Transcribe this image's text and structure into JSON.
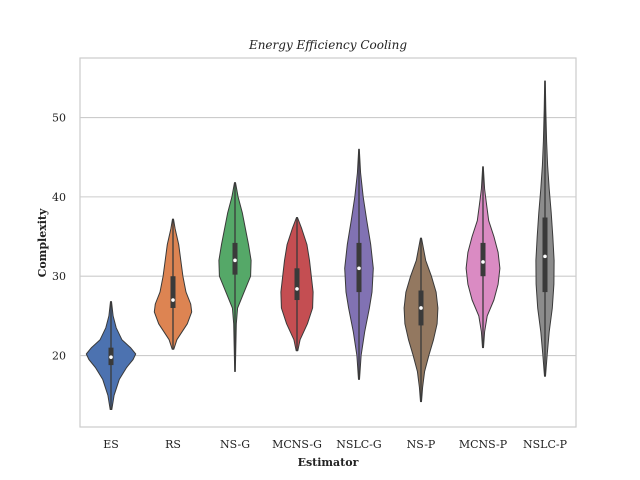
{
  "chart_data": {
    "type": "violin",
    "title": "Energy Efficiency Cooling",
    "xlabel": "Estimator",
    "ylabel": "Complexity",
    "ylim": [
      11,
      57.5
    ],
    "yticks": [
      20,
      30,
      40,
      50
    ],
    "grid": "horizontal",
    "series": [
      {
        "name": "ES",
        "color": "#4c72b0",
        "min": 13.2,
        "max": 26.8,
        "q1": 18.8,
        "median": 19.8,
        "q3": 21.0,
        "profile": [
          [
            13.2,
            0.03
          ],
          [
            15,
            0.12
          ],
          [
            17,
            0.32
          ],
          [
            18.5,
            0.6
          ],
          [
            19.5,
            0.85
          ],
          [
            20.2,
            0.95
          ],
          [
            21,
            0.75
          ],
          [
            22,
            0.42
          ],
          [
            23.5,
            0.2
          ],
          [
            25,
            0.08
          ],
          [
            26.8,
            0.02
          ]
        ]
      },
      {
        "name": "RS",
        "color": "#dd8452",
        "min": 20.8,
        "max": 37.2,
        "q1": 26.0,
        "median": 27.0,
        "q3": 30.0,
        "profile": [
          [
            20.8,
            0.03
          ],
          [
            22,
            0.15
          ],
          [
            24,
            0.55
          ],
          [
            25.5,
            0.72
          ],
          [
            26.5,
            0.68
          ],
          [
            28,
            0.5
          ],
          [
            30,
            0.38
          ],
          [
            32,
            0.3
          ],
          [
            34,
            0.22
          ],
          [
            36,
            0.08
          ],
          [
            37.2,
            0.02
          ]
        ]
      },
      {
        "name": "NS-G",
        "color": "#55a868",
        "min": 18.0,
        "max": 41.8,
        "q1": 30.2,
        "median": 32.0,
        "q3": 34.2,
        "profile": [
          [
            18,
            0.01
          ],
          [
            21,
            0.03
          ],
          [
            24,
            0.05
          ],
          [
            26,
            0.1
          ],
          [
            28,
            0.35
          ],
          [
            30,
            0.6
          ],
          [
            32,
            0.62
          ],
          [
            34,
            0.52
          ],
          [
            36,
            0.4
          ],
          [
            38,
            0.28
          ],
          [
            40,
            0.12
          ],
          [
            41.8,
            0.02
          ]
        ]
      },
      {
        "name": "MCNS-G",
        "color": "#c44e52",
        "min": 20.6,
        "max": 37.4,
        "q1": 27.0,
        "median": 28.4,
        "q3": 31.0,
        "profile": [
          [
            20.6,
            0.03
          ],
          [
            22,
            0.12
          ],
          [
            24,
            0.4
          ],
          [
            26,
            0.6
          ],
          [
            28,
            0.62
          ],
          [
            30,
            0.55
          ],
          [
            32,
            0.48
          ],
          [
            34,
            0.38
          ],
          [
            36,
            0.18
          ],
          [
            37.4,
            0.02
          ]
        ]
      },
      {
        "name": "NSLC-G",
        "color": "#8172b3",
        "min": 17.0,
        "max": 46.0,
        "q1": 28.0,
        "median": 31.0,
        "q3": 34.2,
        "profile": [
          [
            17,
            0.02
          ],
          [
            20,
            0.08
          ],
          [
            23,
            0.22
          ],
          [
            26,
            0.4
          ],
          [
            28,
            0.5
          ],
          [
            31,
            0.55
          ],
          [
            34,
            0.45
          ],
          [
            37,
            0.3
          ],
          [
            40,
            0.16
          ],
          [
            43,
            0.06
          ],
          [
            46,
            0.01
          ]
        ]
      },
      {
        "name": "NS-P",
        "color": "#937860",
        "min": 14.2,
        "max": 34.8,
        "q1": 23.8,
        "median": 26.0,
        "q3": 28.2,
        "profile": [
          [
            14.2,
            0.02
          ],
          [
            16,
            0.06
          ],
          [
            18,
            0.14
          ],
          [
            20,
            0.3
          ],
          [
            22,
            0.48
          ],
          [
            24,
            0.62
          ],
          [
            26,
            0.65
          ],
          [
            28,
            0.58
          ],
          [
            30,
            0.4
          ],
          [
            32,
            0.18
          ],
          [
            34.8,
            0.02
          ]
        ]
      },
      {
        "name": "MCNS-P",
        "color": "#da8bc3",
        "min": 21.0,
        "max": 43.8,
        "q1": 30.0,
        "median": 31.8,
        "q3": 34.2,
        "profile": [
          [
            21,
            0.02
          ],
          [
            23,
            0.06
          ],
          [
            25,
            0.16
          ],
          [
            27,
            0.42
          ],
          [
            29,
            0.58
          ],
          [
            31,
            0.65
          ],
          [
            33,
            0.58
          ],
          [
            35,
            0.42
          ],
          [
            37,
            0.22
          ],
          [
            39,
            0.14
          ],
          [
            41,
            0.06
          ],
          [
            43.8,
            0.01
          ]
        ]
      },
      {
        "name": "NSLC-P",
        "color": "#8c8c8c",
        "min": 17.4,
        "max": 54.6,
        "q1": 28.0,
        "median": 32.5,
        "q3": 37.4,
        "profile": [
          [
            17.4,
            0.02
          ],
          [
            20,
            0.08
          ],
          [
            23,
            0.16
          ],
          [
            26,
            0.28
          ],
          [
            29,
            0.34
          ],
          [
            32,
            0.35
          ],
          [
            35,
            0.3
          ],
          [
            38,
            0.24
          ],
          [
            41,
            0.16
          ],
          [
            44,
            0.1
          ],
          [
            47,
            0.06
          ],
          [
            51,
            0.03
          ],
          [
            54.6,
            0.01
          ]
        ]
      }
    ]
  }
}
